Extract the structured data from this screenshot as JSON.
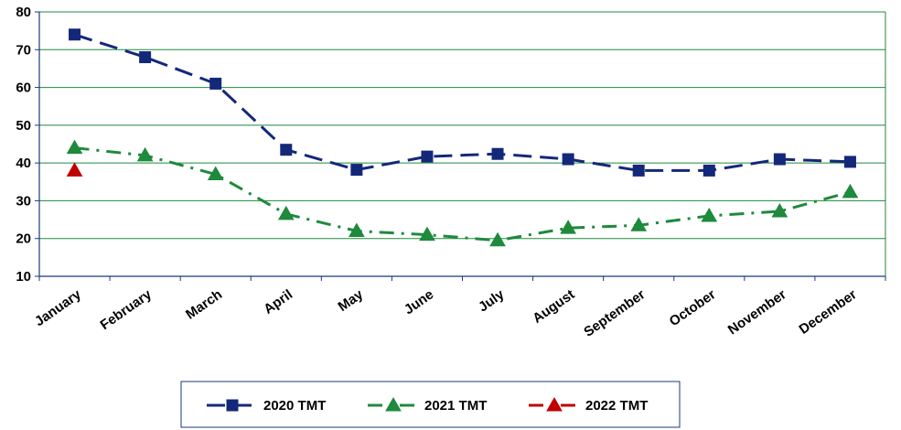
{
  "chart_data": {
    "type": "line",
    "categories": [
      "January",
      "February",
      "March",
      "April",
      "May",
      "June",
      "July",
      "August",
      "September",
      "October",
      "November",
      "December"
    ],
    "ylim": [
      10,
      80
    ],
    "yticks": [
      10,
      20,
      30,
      40,
      50,
      60,
      70,
      80
    ],
    "grid": true,
    "legend_position": "bottom",
    "series": [
      {
        "name": "2020 TMT",
        "color": "#14287A",
        "marker": "square",
        "dash": "dash",
        "values": [
          74,
          68,
          61,
          43.5,
          38.2,
          41.7,
          42.4,
          41,
          38,
          38,
          41,
          40.3
        ]
      },
      {
        "name": "2021 TMT",
        "color": "#1E8A3C",
        "marker": "triangle",
        "dash": "dashdot",
        "values": [
          44,
          42,
          37,
          26.5,
          22,
          21,
          19.5,
          22.8,
          23.5,
          26,
          27.2,
          32.3
        ]
      },
      {
        "name": "2022 TMT",
        "color": "#C00000",
        "marker": "triangle",
        "dash": "dashdot",
        "values": [
          38,
          null,
          null,
          null,
          null,
          null,
          null,
          null,
          null,
          null,
          null,
          null
        ]
      }
    ]
  }
}
